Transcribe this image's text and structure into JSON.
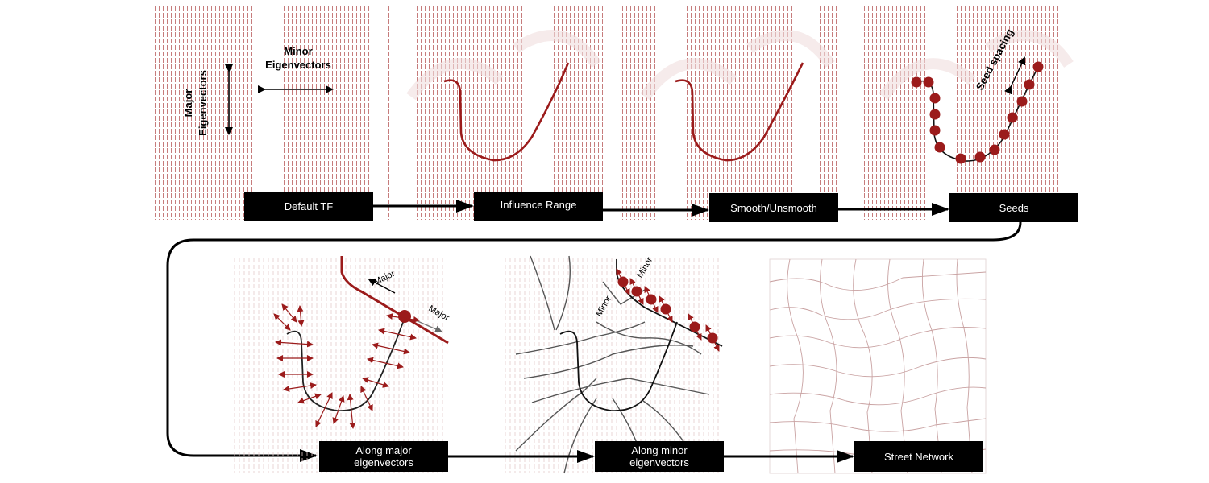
{
  "top_row": {
    "panel1": {
      "major_label_line1": "Major",
      "major_label_line2": "Eigenvectors",
      "minor_label_line1": "Minor",
      "minor_label_line2": "Eigenvectors"
    },
    "panel4": {
      "seed_spacing_label": "Seed spacing"
    }
  },
  "steps": [
    {
      "label": "Default TF"
    },
    {
      "label": "Influence Range"
    },
    {
      "label": "Smooth/Unsmooth"
    },
    {
      "label": "Seeds"
    }
  ],
  "bottom_row": {
    "panel5": {
      "major_a": "Major",
      "major_b": "Major"
    },
    "panel6": {
      "minor_a": "Minor",
      "minor_b": "Minor"
    }
  },
  "bottom_steps": [
    {
      "line1": "Along major",
      "line2": "eigenvectors"
    },
    {
      "line1": "Along minor",
      "line2": "eigenvectors"
    },
    {
      "line1": "Street Network",
      "line2": ""
    }
  ],
  "colors": {
    "accent": "#9b1b1b",
    "field": "#b04040",
    "label_bg": "#000000",
    "label_text": "#ffffff"
  }
}
